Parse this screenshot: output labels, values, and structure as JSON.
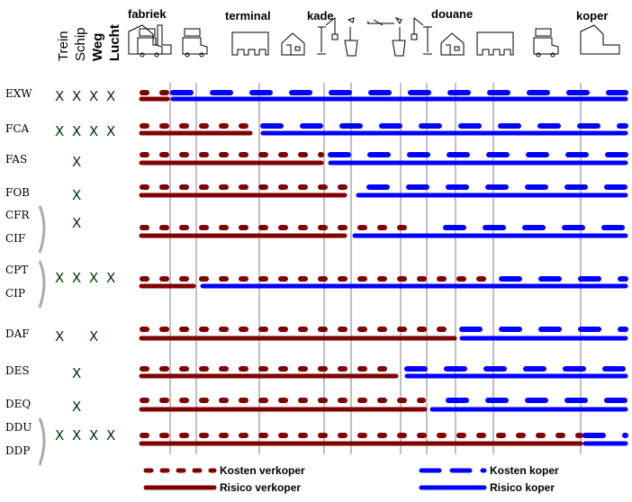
{
  "modes": [
    "Trein",
    "Schip",
    "Weg",
    "Lucht"
  ],
  "stations": [
    "fabriek",
    "terminal",
    "kade",
    "douane",
    "koper"
  ],
  "colors": {
    "seller": "#800000",
    "buyer": "#0000ff",
    "grid": "#808080",
    "bracket": "#aaaaaa"
  },
  "terms": [
    {
      "labels": [
        "EXW"
      ],
      "modes": [
        true,
        true,
        true,
        true
      ]
    },
    {
      "labels": [
        "FCA"
      ],
      "modes": [
        true,
        true,
        true,
        true
      ]
    },
    {
      "labels": [
        "FAS"
      ],
      "modes": [
        false,
        true,
        false,
        false
      ]
    },
    {
      "labels": [
        "FOB"
      ],
      "modes": [
        false,
        true,
        false,
        false
      ]
    },
    {
      "labels": [
        "CFR",
        "CIF"
      ],
      "modes": [
        false,
        true,
        false,
        false
      ]
    },
    {
      "labels": [
        "CPT",
        "CIP"
      ],
      "modes": [
        true,
        true,
        true,
        true
      ]
    },
    {
      "labels": [
        "DAF"
      ],
      "modes": [
        true,
        false,
        true,
        false
      ]
    },
    {
      "labels": [
        "DES"
      ],
      "modes": [
        false,
        true,
        false,
        false
      ]
    },
    {
      "labels": [
        "DEQ"
      ],
      "modes": [
        false,
        true,
        false,
        false
      ]
    },
    {
      "labels": [
        "DDU",
        "DDP"
      ],
      "modes": [
        true,
        true,
        true,
        true
      ]
    }
  ],
  "mode_mark": "X",
  "legend": {
    "seller_cost": "Kosten verkoper",
    "seller_risk": "Risico verkoper",
    "buyer_cost": "Kosten koper",
    "buyer_risk": "Risico koper"
  }
}
